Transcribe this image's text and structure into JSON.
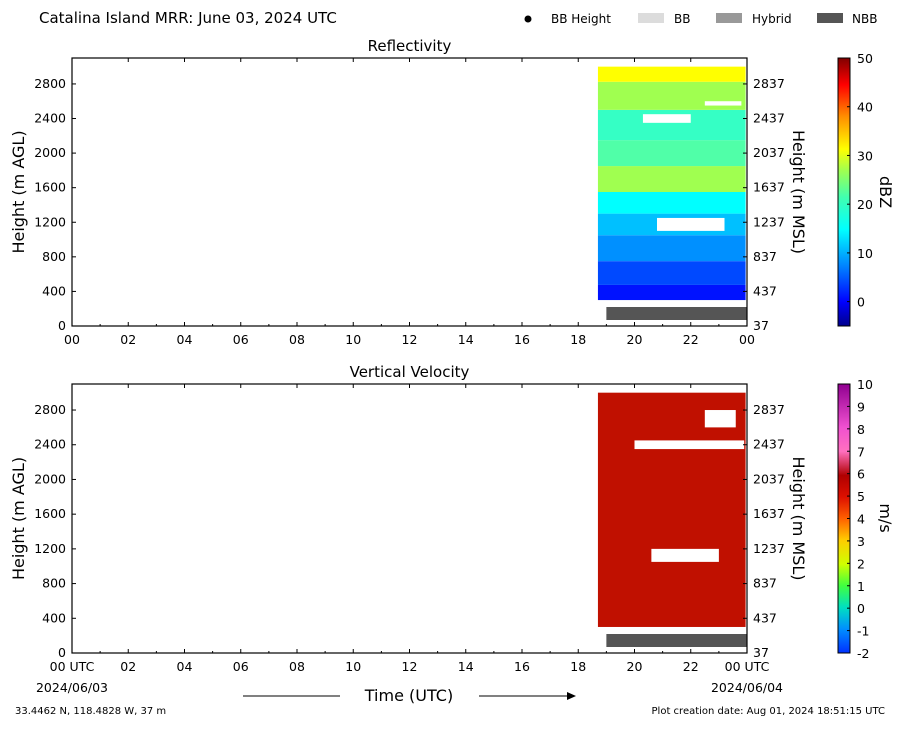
{
  "header": {
    "title": "Catalina Island MRR:  June 03, 2024 UTC"
  },
  "legend": [
    {
      "label": "BB Height",
      "symbol": "dot",
      "color": "#000000"
    },
    {
      "label": "BB",
      "symbol": "box",
      "color": "#dcdcdc"
    },
    {
      "label": "Hybrid",
      "symbol": "box",
      "color": "#999999"
    },
    {
      "label": "NBB",
      "symbol": "box",
      "color": "#555555"
    }
  ],
  "footer": {
    "xlabel": "Time (UTC)",
    "date_left": "2024/06/03",
    "date_right": "2024/06/04",
    "location": "33.4462 N, 118.4828 W, 37 m",
    "created": "Plot creation date: Aug 01, 2024 18:51:15 UTC"
  },
  "chart_data": [
    {
      "type": "heatmap",
      "title": "Reflectivity",
      "ylabel": "Height (m AGL)",
      "ylabel_right": "Height (m MSL)",
      "x_range_hours": [
        0,
        24
      ],
      "x_ticks": [
        "00",
        "02",
        "04",
        "06",
        "08",
        "10",
        "12",
        "14",
        "16",
        "18",
        "20",
        "22",
        "00"
      ],
      "y_range_m": [
        0,
        3100
      ],
      "y_ticks": [
        0,
        400,
        800,
        1200,
        1600,
        2000,
        2400,
        2800
      ],
      "y_ticks_right": [
        "37",
        "437",
        "837",
        "1237",
        "1637",
        "2037",
        "2437",
        "2837"
      ],
      "data_extent": {
        "start_hour": 18.7,
        "end_hour": 23.95,
        "bottom_m": 300,
        "top_m": 3000
      },
      "colorbar": {
        "label": "dBZ",
        "min": -5,
        "max": 50,
        "ticks": [
          0,
          10,
          20,
          30,
          40,
          50
        ]
      },
      "approx_values_by_height": [
        {
          "height_m": 350,
          "dbz": 1
        },
        {
          "height_m": 600,
          "dbz": 4
        },
        {
          "height_m": 900,
          "dbz": 8
        },
        {
          "height_m": 1200,
          "dbz": 11
        },
        {
          "height_m": 1400,
          "dbz": 15
        },
        {
          "height_m": 1700,
          "dbz": 21
        },
        {
          "height_m": 2000,
          "dbz": 18
        },
        {
          "height_m": 2300,
          "dbz": 17
        },
        {
          "height_m": 2700,
          "dbz": 21
        },
        {
          "height_m": 2950,
          "dbz": 27
        }
      ],
      "gaps": [
        {
          "start_hour": 20.8,
          "end_hour": 23.2,
          "bottom_m": 1100,
          "top_m": 1250
        },
        {
          "start_hour": 20.3,
          "end_hour": 22.0,
          "bottom_m": 2350,
          "top_m": 2450
        },
        {
          "start_hour": 22.5,
          "end_hour": 23.8,
          "bottom_m": 2550,
          "top_m": 2600
        }
      ],
      "bright_band": {
        "class": "NBB",
        "start_hour": 19.0,
        "end_hour": 24.0
      }
    },
    {
      "type": "heatmap",
      "title": "Vertical Velocity",
      "ylabel": "Height (m AGL)",
      "ylabel_right": "Height (m MSL)",
      "x_range_hours": [
        0,
        24
      ],
      "x_ticks": [
        "00 UTC",
        "02",
        "04",
        "06",
        "08",
        "10",
        "12",
        "14",
        "16",
        "18",
        "20",
        "22",
        "00 UTC"
      ],
      "y_range_m": [
        0,
        3100
      ],
      "y_ticks": [
        0,
        400,
        800,
        1200,
        1600,
        2000,
        2400,
        2800
      ],
      "y_ticks_right": [
        "37",
        "437",
        "837",
        "1237",
        "1637",
        "2037",
        "2437",
        "2837"
      ],
      "data_extent": {
        "start_hour": 18.7,
        "end_hour": 23.95,
        "bottom_m": 300,
        "top_m": 3000
      },
      "colorbar": {
        "label": "m/s",
        "min": -2,
        "max": 10,
        "ticks": [
          -2,
          -1,
          0,
          1,
          2,
          3,
          4,
          5,
          6,
          7,
          8,
          9,
          10
        ]
      },
      "approx_value_ms": 6,
      "gaps": [
        {
          "start_hour": 20.6,
          "end_hour": 23.0,
          "bottom_m": 1050,
          "top_m": 1200
        },
        {
          "start_hour": 20.0,
          "end_hour": 23.9,
          "bottom_m": 2350,
          "top_m": 2450
        },
        {
          "start_hour": 22.5,
          "end_hour": 23.6,
          "bottom_m": 2600,
          "top_m": 2800
        }
      ],
      "bright_band": {
        "class": "NBB",
        "start_hour": 19.0,
        "end_hour": 24.0
      }
    }
  ]
}
